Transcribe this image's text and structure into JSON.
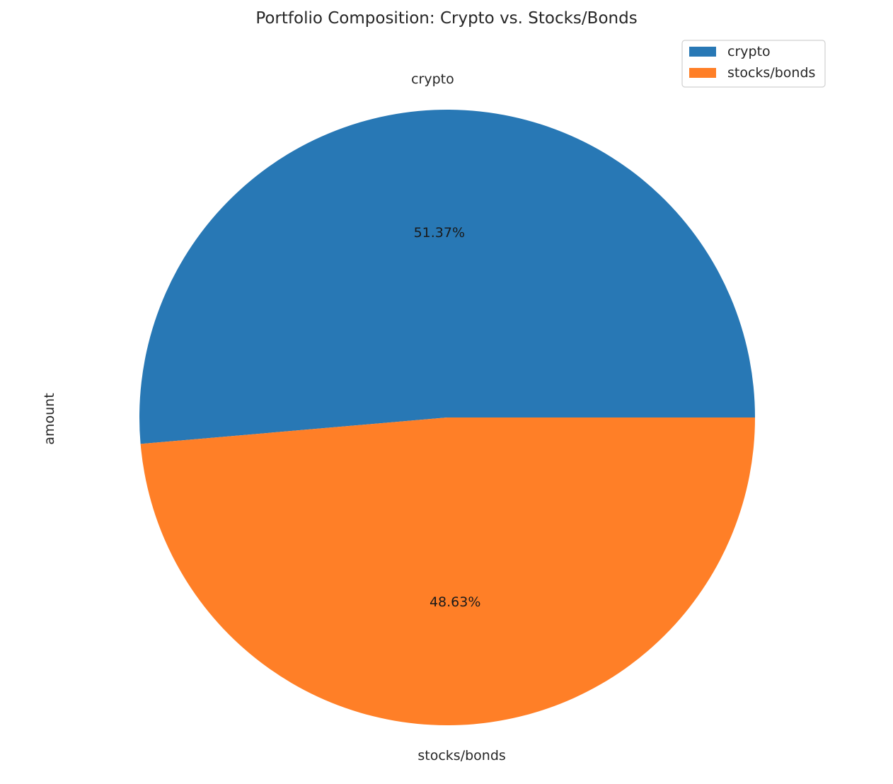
{
  "chart_data": {
    "type": "pie",
    "title": "Portfolio Composition: Crypto vs. Stocks/Bonds",
    "ylabel": "amount",
    "start_angle_deg": 0,
    "direction": "counterclockwise",
    "slices": [
      {
        "label": "crypto",
        "percent": 51.37,
        "percent_label": "51.37%",
        "color": "#2878b5"
      },
      {
        "label": "stocks/bonds",
        "percent": 48.63,
        "percent_label": "48.63%",
        "color": "#ff7f27"
      }
    ],
    "legend": {
      "position": "top-right",
      "entries": [
        {
          "label": "crypto",
          "color": "#2878b5"
        },
        {
          "label": "stocks/bonds",
          "color": "#ff7f27"
        }
      ]
    }
  }
}
